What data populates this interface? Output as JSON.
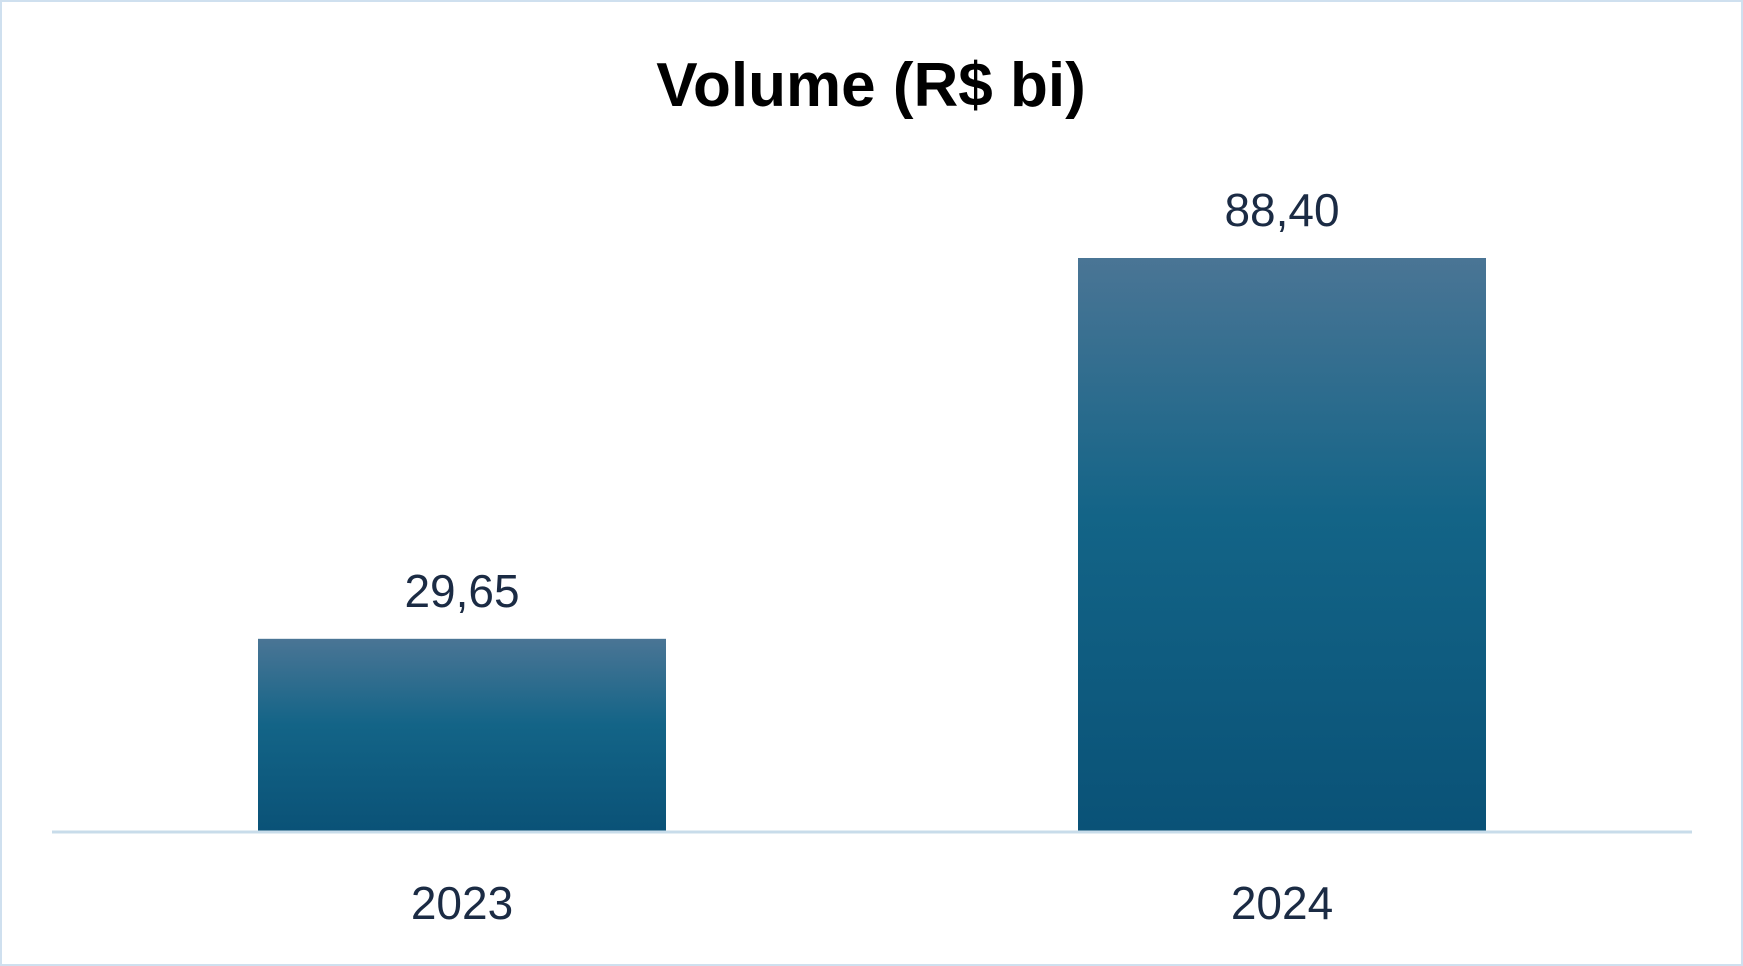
{
  "chart_data": {
    "type": "bar",
    "title": "Volume (R$ bi)",
    "categories": [
      "2023",
      "2024"
    ],
    "values": [
      29.65,
      88.4
    ],
    "value_labels": [
      "29,65",
      "88,40"
    ],
    "xlabel": "",
    "ylabel": "",
    "ylim": [
      0,
      100
    ],
    "grid": false,
    "legend": "none"
  },
  "colors": {
    "bar_top": "#4a7595",
    "bar_mid": "#136487",
    "bar_bottom": "#0a5277",
    "axis_line": "#c8dcea",
    "frame_border": "#cfe0ef",
    "text": "#1b2b44"
  }
}
